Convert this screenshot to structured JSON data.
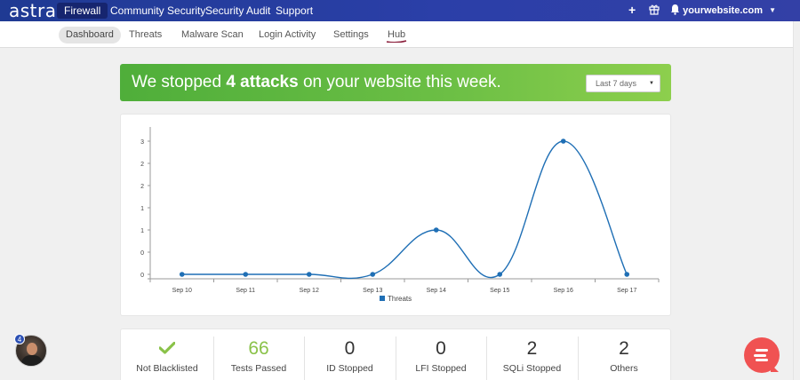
{
  "topbar": {
    "logo": "astra",
    "nav": [
      "Firewall",
      "Community Security",
      "Security Audit",
      "Support"
    ],
    "active_nav": "Firewall",
    "site": "yourwebsite.com",
    "icons": [
      "plus-icon",
      "gift-icon",
      "bell-icon",
      "chevron-down-icon"
    ]
  },
  "subnav": {
    "items": [
      "Dashboard",
      "Threats",
      "Malware Scan",
      "Login Activity",
      "Settings",
      "Hub"
    ],
    "active": "Dashboard"
  },
  "banner": {
    "prefix": "We stopped ",
    "highlight": "4 attacks",
    "suffix": " on your website this week.",
    "range_value": "Last 7 days"
  },
  "chart_data": {
    "type": "line",
    "categories": [
      "Sep 10",
      "Sep 11",
      "Sep 12",
      "Sep 13",
      "Sep 14",
      "Sep 15",
      "Sep 16",
      "Sep 17"
    ],
    "series": [
      {
        "name": "Threats",
        "values": [
          0,
          0,
          0,
          0,
          1,
          0,
          3,
          0
        ]
      }
    ],
    "y_ticks": [
      "0",
      "0",
      "1",
      "1",
      "2",
      "2",
      "3"
    ],
    "ylim": [
      0,
      3
    ],
    "legend": "bottom",
    "color": "#1f6fb5"
  },
  "stats": [
    {
      "value": "",
      "label": "Not Blacklisted",
      "icon": "check-icon"
    },
    {
      "value": "66",
      "label": "Tests Passed"
    },
    {
      "value": "0",
      "label": "ID Stopped"
    },
    {
      "value": "0",
      "label": "LFI Stopped"
    },
    {
      "value": "2",
      "label": "SQLi Stopped"
    },
    {
      "value": "2",
      "label": "Others"
    }
  ],
  "avatar": {
    "badge": "4"
  },
  "colors": {
    "primary": "#2b3fa8",
    "success": "#6cbf45",
    "accent": "#f05252",
    "line": "#1f6fb5"
  }
}
